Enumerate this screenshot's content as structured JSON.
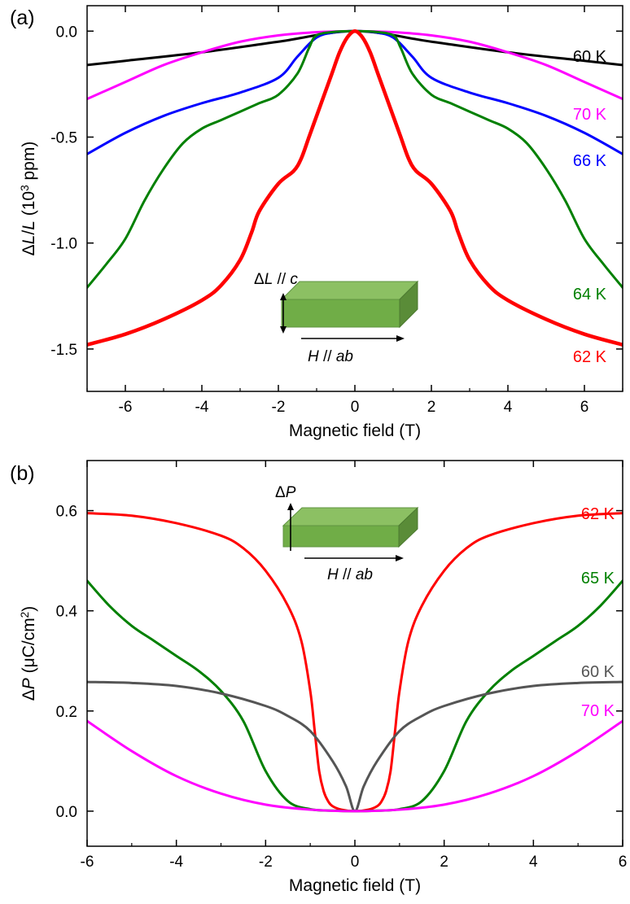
{
  "chart_data": [
    {
      "panel_label": "(a)",
      "type": "line",
      "ylabel_parts": [
        "Δ",
        "L",
        "/",
        "L",
        " (10",
        "3",
        " ppm)"
      ],
      "xlabel": "Magnetic field (T)",
      "xlim": [
        -7,
        7
      ],
      "ylim": [
        -1.7,
        0.12
      ],
      "xticks": [
        -6,
        -4,
        -2,
        0,
        2,
        4,
        6
      ],
      "yticks": [
        0.0,
        -0.5,
        -1.0,
        -1.5
      ],
      "ytick_labels": [
        "0.0",
        "-0.5",
        "-1.0",
        "-1.5"
      ],
      "grid": false,
      "inset": {
        "arrow_label_parts": [
          "Δ",
          "L",
          " // ",
          "c"
        ],
        "field_label_parts": [
          "H",
          " // ",
          "ab"
        ]
      },
      "series": [
        {
          "name": "60 K",
          "color": "#000000",
          "x": [
            -7,
            -6,
            -4,
            -2,
            0,
            2,
            4,
            6,
            7
          ],
          "y": [
            -0.16,
            -0.14,
            -0.1,
            -0.05,
            0.0,
            -0.05,
            -0.1,
            -0.14,
            -0.16
          ]
        },
        {
          "name": "70 K",
          "color": "#ff00ff",
          "x": [
            -7,
            -6,
            -5,
            -4,
            -3,
            -2,
            -1,
            0,
            1,
            2,
            3,
            4,
            5,
            6,
            7
          ],
          "y": [
            -0.32,
            -0.24,
            -0.16,
            -0.1,
            -0.05,
            -0.02,
            -0.005,
            0.0,
            -0.005,
            -0.02,
            -0.05,
            -0.1,
            -0.16,
            -0.24,
            -0.32
          ]
        },
        {
          "name": "66 K",
          "color": "#0000ff",
          "x": [
            -7,
            -6,
            -5,
            -4,
            -3,
            -2,
            -1.5,
            -1,
            -0.5,
            0,
            0.5,
            1,
            1.5,
            2,
            3,
            4,
            5,
            6,
            7
          ],
          "y": [
            -0.58,
            -0.48,
            -0.4,
            -0.34,
            -0.29,
            -0.22,
            -0.12,
            -0.03,
            -0.005,
            0.0,
            -0.005,
            -0.03,
            -0.12,
            -0.22,
            -0.29,
            -0.34,
            -0.4,
            -0.48,
            -0.58
          ]
        },
        {
          "name": "64 K",
          "color": "#008000",
          "x": [
            -7,
            -6.5,
            -6,
            -5.5,
            -5,
            -4.5,
            -4,
            -3.5,
            -3,
            -2.5,
            -2,
            -1.5,
            -1.2,
            -1,
            -0.5,
            0,
            0.5,
            1,
            1.2,
            1.5,
            2,
            2.5,
            3,
            3.5,
            4,
            4.5,
            5,
            5.5,
            6,
            6.5,
            7
          ],
          "y": [
            -1.21,
            -1.1,
            -0.98,
            -0.8,
            -0.65,
            -0.53,
            -0.46,
            -0.42,
            -0.38,
            -0.34,
            -0.3,
            -0.2,
            -0.08,
            -0.02,
            -0.003,
            0.0,
            -0.003,
            -0.02,
            -0.08,
            -0.2,
            -0.3,
            -0.34,
            -0.38,
            -0.42,
            -0.46,
            -0.53,
            -0.65,
            -0.8,
            -0.98,
            -1.1,
            -1.21
          ]
        },
        {
          "name": "62 K",
          "color": "#ff0000",
          "x": [
            -7,
            -6,
            -5,
            -4,
            -3.5,
            -3,
            -2.7,
            -2.5,
            -2,
            -1.6,
            -1.4,
            -1.2,
            -1,
            -0.8,
            -0.6,
            -0.4,
            -0.2,
            0,
            0.2,
            0.4,
            0.6,
            0.8,
            1,
            1.2,
            1.4,
            1.6,
            2,
            2.5,
            2.7,
            3,
            3.5,
            4,
            5,
            6,
            7
          ],
          "y": [
            -1.48,
            -1.43,
            -1.36,
            -1.27,
            -1.2,
            -1.08,
            -0.95,
            -0.85,
            -0.72,
            -0.66,
            -0.6,
            -0.5,
            -0.4,
            -0.3,
            -0.2,
            -0.1,
            -0.03,
            0.0,
            -0.03,
            -0.1,
            -0.2,
            -0.3,
            -0.4,
            -0.5,
            -0.6,
            -0.66,
            -0.72,
            -0.85,
            -0.95,
            -1.08,
            -1.2,
            -1.27,
            -1.36,
            -1.43,
            -1.48
          ]
        }
      ]
    },
    {
      "panel_label": "(b)",
      "type": "line",
      "ylabel_parts": [
        "Δ",
        "P",
        " (μC/cm",
        "2",
        ")"
      ],
      "xlabel": "Magnetic field (T)",
      "xlim": [
        -6,
        6
      ],
      "ylim": [
        -0.07,
        0.7
      ],
      "xticks": [
        -6,
        -4,
        -2,
        0,
        2,
        4,
        6
      ],
      "yticks": [
        0.0,
        0.2,
        0.4,
        0.6
      ],
      "ytick_labels": [
        "0.0",
        "0.2",
        "0.4",
        "0.6"
      ],
      "grid": false,
      "inset": {
        "arrow_label_parts": [
          "Δ",
          "P"
        ],
        "field_label_parts": [
          "H",
          " // ",
          "ab"
        ]
      },
      "series": [
        {
          "name": "62 K",
          "color": "#ff0000",
          "x": [
            -6,
            -5,
            -4,
            -3,
            -2.5,
            -2,
            -1.5,
            -1.2,
            -1,
            -0.9,
            -0.8,
            -0.7,
            -0.6,
            -0.5,
            -0.3,
            0,
            0.3,
            0.5,
            0.6,
            0.7,
            0.8,
            0.9,
            1,
            1.2,
            1.5,
            2,
            2.5,
            3,
            4,
            5,
            6
          ],
          "y": [
            0.595,
            0.59,
            0.575,
            0.55,
            0.525,
            0.48,
            0.41,
            0.34,
            0.24,
            0.16,
            0.08,
            0.04,
            0.02,
            0.01,
            0.003,
            0.0,
            0.003,
            0.01,
            0.02,
            0.04,
            0.08,
            0.16,
            0.24,
            0.34,
            0.41,
            0.48,
            0.525,
            0.55,
            0.575,
            0.59,
            0.595
          ]
        },
        {
          "name": "65 K",
          "color": "#008000",
          "x": [
            -6,
            -5.5,
            -5,
            -4.5,
            -4,
            -3.5,
            -3,
            -2.5,
            -2,
            -1.5,
            -1,
            -0.5,
            0,
            0.5,
            1,
            1.5,
            2,
            2.5,
            3,
            3.5,
            4,
            4.5,
            5,
            5.5,
            6
          ],
          "y": [
            0.46,
            0.41,
            0.37,
            0.34,
            0.31,
            0.28,
            0.24,
            0.18,
            0.08,
            0.02,
            0.004,
            0.001,
            0.0,
            0.001,
            0.004,
            0.02,
            0.08,
            0.18,
            0.24,
            0.28,
            0.31,
            0.34,
            0.37,
            0.41,
            0.46
          ]
        },
        {
          "name": "60 K",
          "color": "#555555",
          "x": [
            -6,
            -5,
            -4,
            -3,
            -2,
            -1.5,
            -1,
            -0.5,
            -0.2,
            0,
            0.2,
            0.5,
            1,
            1.5,
            2,
            3,
            4,
            5,
            6
          ],
          "y": [
            0.258,
            0.256,
            0.25,
            0.235,
            0.21,
            0.19,
            0.16,
            0.1,
            0.05,
            0.0,
            0.05,
            0.1,
            0.16,
            0.19,
            0.21,
            0.235,
            0.25,
            0.256,
            0.258
          ]
        },
        {
          "name": "70 K",
          "color": "#ff00ff",
          "x": [
            -6,
            -5,
            -4,
            -3,
            -2,
            -1,
            0,
            1,
            2,
            3,
            4,
            5,
            6
          ],
          "y": [
            0.18,
            0.12,
            0.07,
            0.035,
            0.013,
            0.003,
            0.0,
            0.003,
            0.013,
            0.035,
            0.07,
            0.12,
            0.18
          ]
        }
      ]
    }
  ],
  "colors": {
    "box_top": "#8cc063",
    "box_front": "#70ad47",
    "box_side": "#5a8c38",
    "axis": "#000000"
  }
}
